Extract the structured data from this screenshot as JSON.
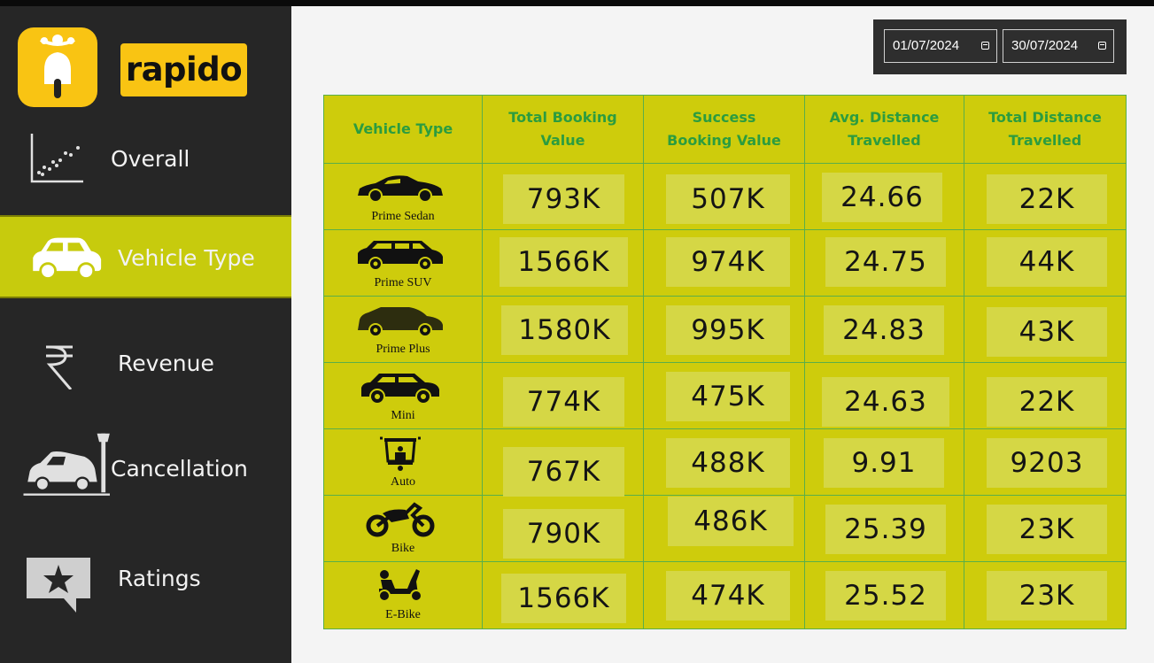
{
  "brand": {
    "logo_text": "rapido"
  },
  "nav": [
    {
      "label": "Overall",
      "icon": "scatter-chart-icon",
      "active": false
    },
    {
      "label": "Vehicle Type",
      "icon": "car-icon",
      "active": true
    },
    {
      "label": "Revenue",
      "icon": "rupee-icon",
      "active": false
    },
    {
      "label": "Cancellation",
      "icon": "crashed-car-icon",
      "active": false
    },
    {
      "label": "Ratings",
      "icon": "star-speech-icon",
      "active": false
    }
  ],
  "date_filter": {
    "start": "01/07/2024",
    "end": "30/07/2024"
  },
  "table": {
    "headers": [
      "Vehicle Type",
      "Total Booking Value",
      "Success Booking Value",
      "Avg. Distance Travelled",
      "Total Distance Travelled"
    ],
    "rows": [
      {
        "vehicle": "Prime Sedan",
        "icon": "sedan-icon",
        "total_booking": "793K",
        "success_booking": "507K",
        "avg_distance": "24.66",
        "total_distance": "22K"
      },
      {
        "vehicle": "Prime SUV",
        "icon": "suv-icon",
        "total_booking": "1566K",
        "success_booking": "974K",
        "avg_distance": "24.75",
        "total_distance": "44K"
      },
      {
        "vehicle": "Prime Plus",
        "icon": "prime-plus-car-icon",
        "total_booking": "1580K",
        "success_booking": "995K",
        "avg_distance": "24.83",
        "total_distance": "43K"
      },
      {
        "vehicle": "Mini",
        "icon": "mini-car-icon",
        "total_booking": "774K",
        "success_booking": "475K",
        "avg_distance": "24.63",
        "total_distance": "22K"
      },
      {
        "vehicle": "Auto",
        "icon": "auto-rickshaw-icon",
        "total_booking": "767K",
        "success_booking": "488K",
        "avg_distance": "9.91",
        "total_distance": "9203"
      },
      {
        "vehicle": "Bike",
        "icon": "motorbike-icon",
        "total_booking": "790K",
        "success_booking": "486K",
        "avg_distance": "25.39",
        "total_distance": "23K"
      },
      {
        "vehicle": "E-Bike",
        "icon": "scooter-icon",
        "total_booking": "1566K",
        "success_booking": "474K",
        "avg_distance": "25.52",
        "total_distance": "23K"
      }
    ]
  }
}
